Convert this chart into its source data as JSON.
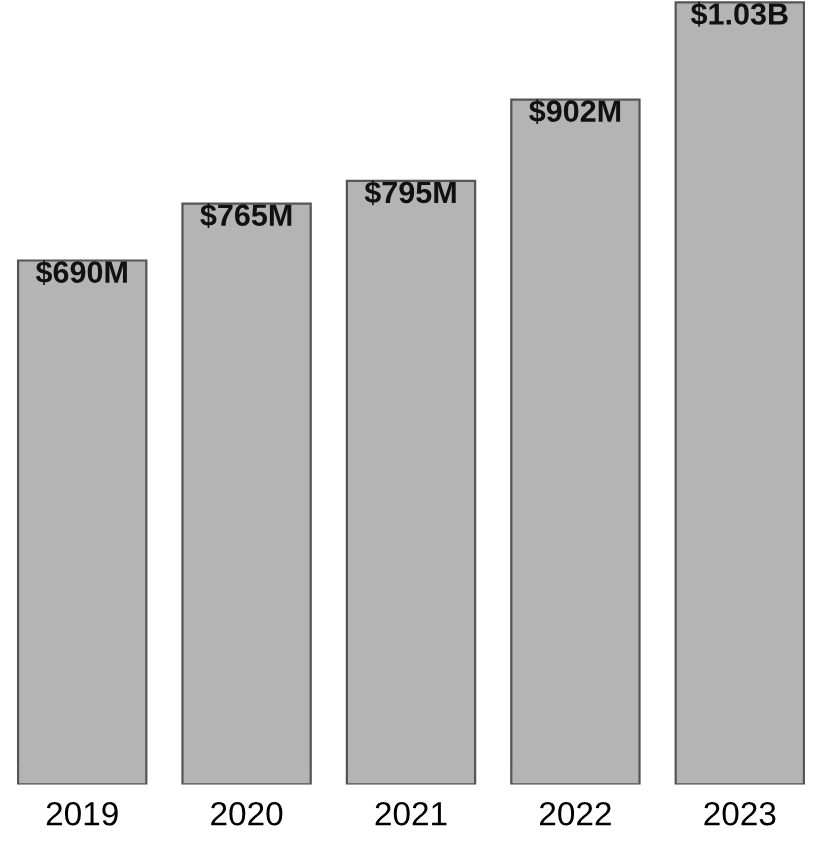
{
  "chart_data": {
    "type": "bar",
    "categories": [
      "2019",
      "2020",
      "2021",
      "2022",
      "2023"
    ],
    "values": [
      690000000,
      765000000,
      795000000,
      902000000,
      1030000000
    ],
    "value_labels": [
      "$690M",
      "$765M",
      "$795M",
      "$902M",
      "$1.03B"
    ],
    "color": "#b4b4b4",
    "grid": false,
    "legend": false
  }
}
